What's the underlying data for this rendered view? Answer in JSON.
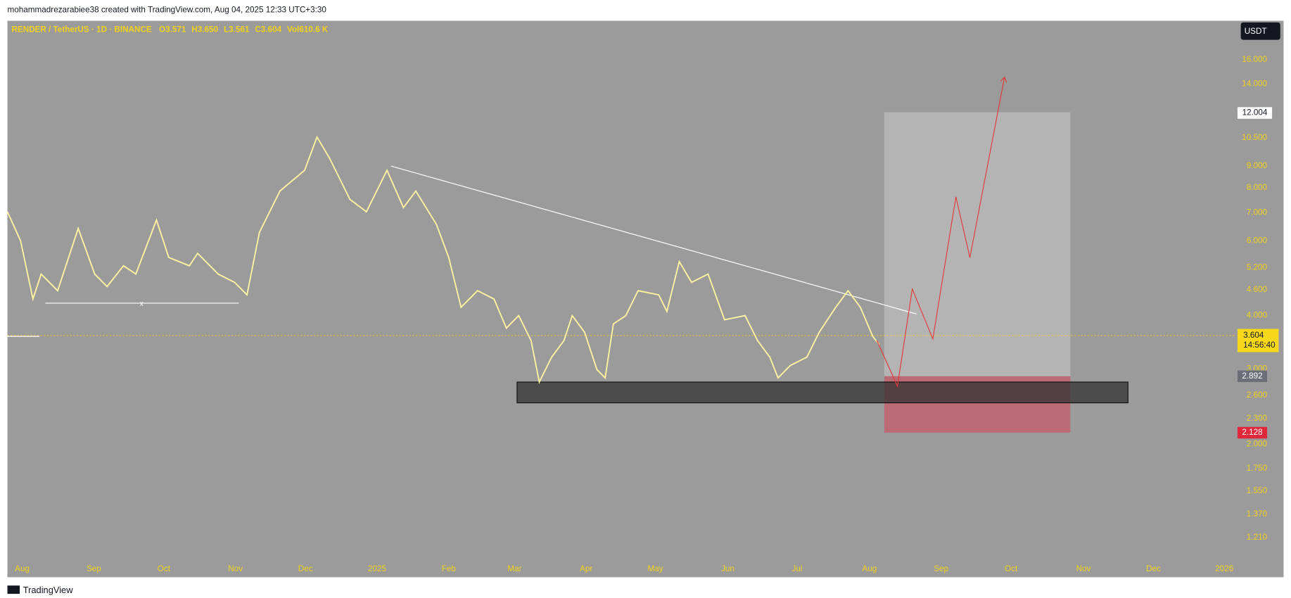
{
  "header": {
    "attribution": "mohammadrezarabiee38 created with TradingView.com, Aug 04, 2025 12:33 UTC+3:30"
  },
  "legend": {
    "symbol": "RENDER / TetherUS · 1D · BINANCE",
    "open_label": "O",
    "open": "3.571",
    "high_label": "H",
    "high": "3.650",
    "low_label": "L",
    "low": "3.561",
    "close_label": "C",
    "close": "3.604",
    "volume_label": "Vol",
    "volume": "610.6 K"
  },
  "currency": "USDT",
  "price_axis": [
    "16.000",
    "14.000",
    "10.500",
    "9.000",
    "8.000",
    "7.000",
    "6.000",
    "5.200",
    "4.600",
    "4.000",
    "3.000",
    "2.600",
    "2.300",
    "2.000",
    "1.750",
    "1.550",
    "1.370",
    "1.210"
  ],
  "badges": {
    "target": "12.004",
    "current": "3.604",
    "countdown": "14:56:40",
    "entry": "2.892",
    "stop": "2.128"
  },
  "time_axis": [
    "Aug",
    "Sep",
    "Oct",
    "Nov",
    "Dec",
    "2025",
    "Feb",
    "Mar",
    "Apr",
    "May",
    "Jun",
    "Jul",
    "Aug",
    "Sep",
    "Oct",
    "Nov",
    "Dec",
    "2026"
  ],
  "footer": {
    "brand": "TradingView"
  }
}
